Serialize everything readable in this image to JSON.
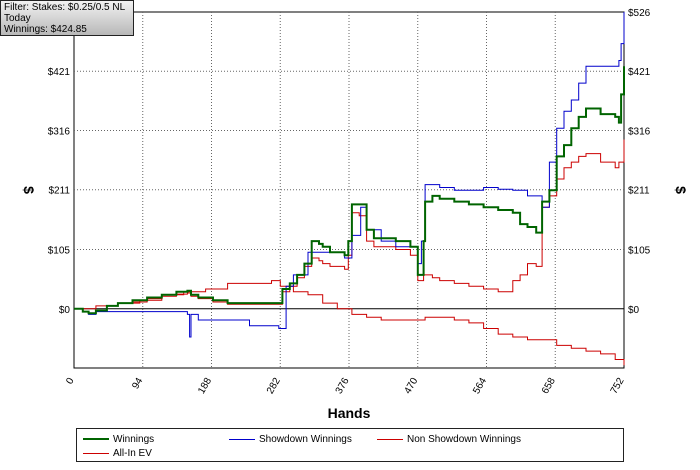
{
  "info": {
    "filter": "Filter: Stakes: $0.25/0.5 NL",
    "period": "Today",
    "winnings": "Winnings: $424.85"
  },
  "chart_data": {
    "type": "line",
    "xlabel": "Hands",
    "ylabel": "$",
    "x_ticks": [
      "0",
      "94",
      "188",
      "282",
      "376",
      "470",
      "564",
      "658",
      "752"
    ],
    "y_ticks": [
      "$0",
      "$105",
      "$211",
      "$316",
      "$421",
      "$526"
    ],
    "xlim": [
      0,
      752
    ],
    "ylim": [
      -105,
      526
    ],
    "grid": true,
    "legend_position": "bottom",
    "series": [
      {
        "name": "Winnings",
        "color": "#006400",
        "x": [
          0,
          12,
          20,
          30,
          45,
          60,
          80,
          100,
          120,
          140,
          155,
          160,
          170,
          190,
          210,
          230,
          260,
          280,
          285,
          295,
          305,
          315,
          325,
          335,
          340,
          350,
          370,
          375,
          380,
          390,
          400,
          410,
          420,
          440,
          460,
          470,
          478,
          480,
          490,
          500,
          520,
          540,
          560,
          580,
          600,
          610,
          620,
          632,
          640,
          650,
          660,
          670,
          680,
          690,
          700,
          720,
          740,
          745,
          748,
          752
        ],
        "y": [
          0,
          -5,
          -8,
          -3,
          5,
          10,
          15,
          20,
          25,
          30,
          32,
          25,
          20,
          15,
          10,
          10,
          10,
          10,
          35,
          45,
          60,
          80,
          120,
          115,
          110,
          100,
          95,
          120,
          185,
          185,
          140,
          125,
          125,
          120,
          110,
          60,
          120,
          190,
          200,
          195,
          190,
          185,
          180,
          175,
          170,
          150,
          145,
          135,
          190,
          210,
          270,
          290,
          320,
          340,
          355,
          345,
          340,
          330,
          380,
          430
        ]
      },
      {
        "name": "Showdown Winnings",
        "color": "#0000cc",
        "x": [
          0,
          12,
          20,
          30,
          60,
          90,
          140,
          155,
          158,
          160,
          165,
          170,
          200,
          240,
          270,
          280,
          290,
          300,
          320,
          340,
          370,
          380,
          392,
          400,
          420,
          440,
          460,
          470,
          475,
          480,
          500,
          520,
          540,
          560,
          580,
          600,
          620,
          640,
          650,
          660,
          670,
          680,
          690,
          700,
          720,
          740,
          745,
          748,
          752
        ],
        "y": [
          0,
          -5,
          -10,
          -5,
          -5,
          -5,
          -5,
          -10,
          -50,
          -10,
          -10,
          -20,
          -20,
          -30,
          -30,
          -35,
          40,
          60,
          100,
          100,
          90,
          130,
          180,
          140,
          120,
          110,
          110,
          80,
          120,
          220,
          215,
          210,
          210,
          215,
          212,
          210,
          200,
          180,
          260,
          320,
          350,
          370,
          400,
          430,
          430,
          430,
          440,
          470,
          526
        ]
      },
      {
        "name": "Non Showdown Winnings",
        "color": "#cc0000",
        "x": [
          0,
          30,
          60,
          90,
          120,
          150,
          180,
          210,
          240,
          270,
          282,
          300,
          320,
          340,
          360,
          380,
          400,
          420,
          440,
          460,
          480,
          500,
          520,
          540,
          560,
          580,
          600,
          620,
          640,
          660,
          680,
          700,
          720,
          740,
          752
        ],
        "y": [
          0,
          5,
          10,
          15,
          25,
          30,
          35,
          45,
          45,
          50,
          40,
          30,
          25,
          10,
          0,
          -10,
          -15,
          -20,
          -20,
          -20,
          -15,
          -15,
          -20,
          -25,
          -35,
          -45,
          -50,
          -55,
          -55,
          -65,
          -70,
          -75,
          -80,
          -90,
          -100
        ]
      },
      {
        "name": "All-In EV",
        "color": "#cc0000",
        "x": [
          0,
          12,
          20,
          30,
          45,
          60,
          80,
          100,
          120,
          140,
          155,
          160,
          170,
          190,
          210,
          230,
          260,
          280,
          285,
          295,
          305,
          315,
          325,
          335,
          340,
          350,
          370,
          375,
          380,
          390,
          400,
          410,
          420,
          440,
          460,
          470,
          478,
          480,
          490,
          500,
          520,
          540,
          560,
          580,
          600,
          610,
          620,
          632,
          640,
          650,
          660,
          670,
          680,
          690,
          700,
          720,
          740,
          745,
          752
        ],
        "y": [
          0,
          -5,
          -8,
          -3,
          5,
          10,
          12,
          18,
          22,
          26,
          28,
          22,
          18,
          12,
          8,
          8,
          8,
          8,
          30,
          40,
          55,
          75,
          90,
          85,
          80,
          75,
          70,
          95,
          170,
          165,
          120,
          110,
          110,
          105,
          95,
          50,
          60,
          60,
          55,
          50,
          45,
          40,
          35,
          30,
          50,
          60,
          80,
          75,
          180,
          200,
          230,
          250,
          260,
          270,
          275,
          260,
          250,
          260,
          300
        ]
      }
    ]
  }
}
